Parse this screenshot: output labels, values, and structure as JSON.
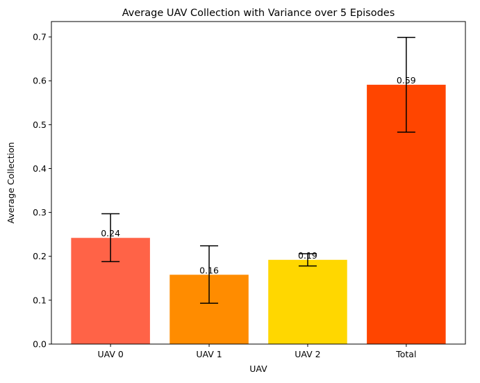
{
  "chart_data": {
    "type": "bar",
    "title": "Average UAV Collection with Variance over 5 Episodes",
    "xlabel": "UAV",
    "ylabel": "Average Collection",
    "categories": [
      "UAV 0",
      "UAV 1",
      "UAV 2",
      "Total"
    ],
    "values": [
      0.242,
      0.158,
      0.192,
      0.591
    ],
    "value_labels": [
      "0.24",
      "0.16",
      "0.19",
      "0.59"
    ],
    "error_low": [
      0.188,
      0.093,
      0.178,
      0.483
    ],
    "error_high": [
      0.297,
      0.224,
      0.206,
      0.699
    ],
    "colors": [
      "#FF6347",
      "#FF8C00",
      "#FFD700",
      "#FF4500"
    ],
    "ylim": [
      0,
      0.735
    ],
    "yticks": [
      0.0,
      0.1,
      0.2,
      0.3,
      0.4,
      0.5,
      0.6,
      0.7
    ],
    "ytick_labels": [
      "0.0",
      "0.1",
      "0.2",
      "0.3",
      "0.4",
      "0.5",
      "0.6",
      "0.7"
    ],
    "grid": false,
    "legend": "none"
  }
}
